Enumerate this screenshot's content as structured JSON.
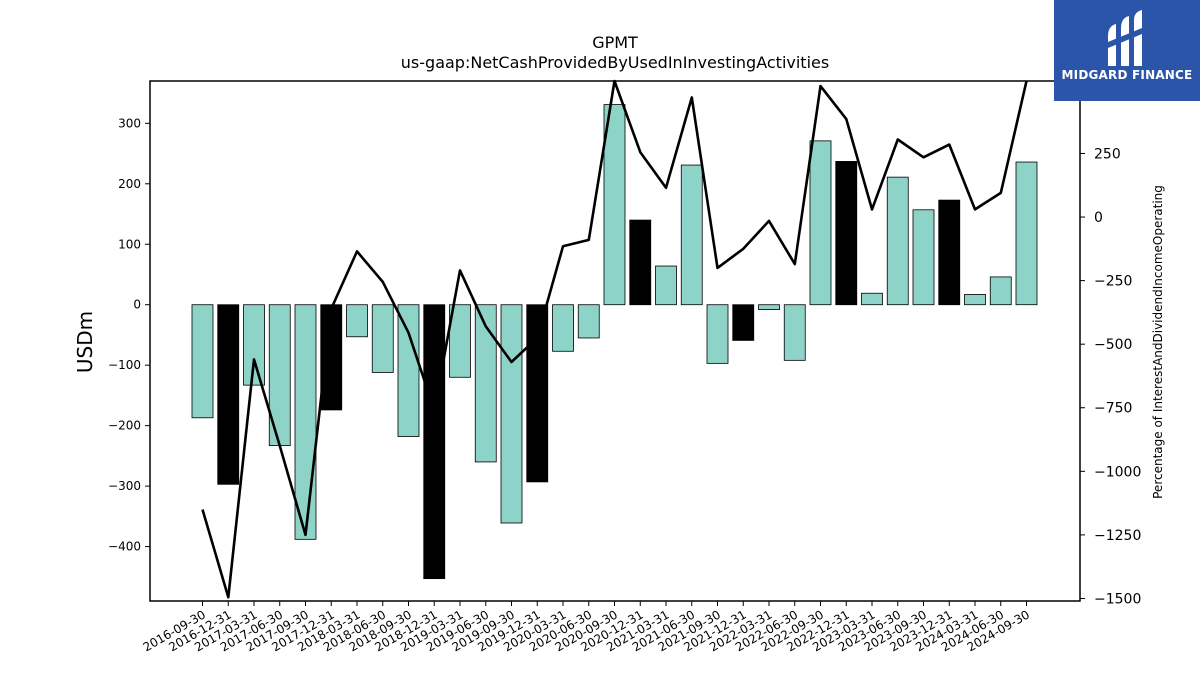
{
  "brand": {
    "name": "MIDGARD FINANCE",
    "icon": "midgard-m-logo-icon",
    "background": "#2b55a8"
  },
  "chart_data": {
    "type": "bar",
    "title": "GPMT",
    "subtitle": "us-gaap:NetCashProvidedByUsedInInvestingActivities",
    "ylabel": "USDm",
    "y2label": "Percentage of InterestAndDividendIncomeOperating",
    "ylim": [
      -490,
      370
    ],
    "y2lim": [
      -1510,
      535
    ],
    "yticks": [
      -400,
      -300,
      -200,
      -100,
      0,
      100,
      200,
      300
    ],
    "y2ticks": [
      -1500,
      -1250,
      -1000,
      -750,
      -500,
      -250,
      0,
      250
    ],
    "grid": false,
    "colors": {
      "bar": "#8dd3c7",
      "bar_q4": "#000000",
      "line": "#000000"
    },
    "categories": [
      "2016-09-30",
      "2016-12-31",
      "2017-03-31",
      "2017-06-30",
      "2017-09-30",
      "2017-12-31",
      "2018-03-31",
      "2018-06-30",
      "2018-09-30",
      "2018-12-31",
      "2019-03-31",
      "2019-06-30",
      "2019-09-30",
      "2019-12-31",
      "2020-03-31",
      "2020-06-30",
      "2020-09-30",
      "2020-12-31",
      "2021-03-31",
      "2021-06-30",
      "2021-09-30",
      "2021-12-31",
      "2022-03-31",
      "2022-06-30",
      "2022-09-30",
      "2022-12-31",
      "2023-03-31",
      "2023-06-30",
      "2023-09-30",
      "2023-12-31",
      "2024-03-31",
      "2024-06-30",
      "2024-09-30"
    ],
    "series": [
      {
        "kind": "bar",
        "axis": "left",
        "values": [
          -187,
          -297,
          -133,
          -233,
          -388,
          -174,
          -53,
          -112,
          -218,
          -453,
          -120,
          -260,
          -361,
          -293,
          -77,
          -55,
          331,
          140,
          64,
          231,
          -97,
          -59,
          -8,
          -92,
          271,
          237,
          19,
          211,
          157,
          173,
          17,
          46,
          236
        ],
        "highlight": [
          false,
          true,
          false,
          false,
          false,
          true,
          false,
          false,
          false,
          true,
          false,
          false,
          false,
          true,
          false,
          false,
          false,
          true,
          false,
          false,
          false,
          true,
          false,
          false,
          false,
          true,
          false,
          false,
          false,
          true,
          false,
          false,
          false
        ]
      },
      {
        "kind": "line",
        "axis": "right",
        "values": [
          -1150,
          -1495,
          -560,
          -900,
          -1250,
          -360,
          -135,
          -255,
          -455,
          -760,
          -210,
          -430,
          -570,
          -475,
          -115,
          -90,
          535,
          255,
          115,
          470,
          -200,
          -125,
          -15,
          -185,
          515,
          385,
          30,
          305,
          235,
          285,
          30,
          95,
          535
        ]
      }
    ]
  }
}
